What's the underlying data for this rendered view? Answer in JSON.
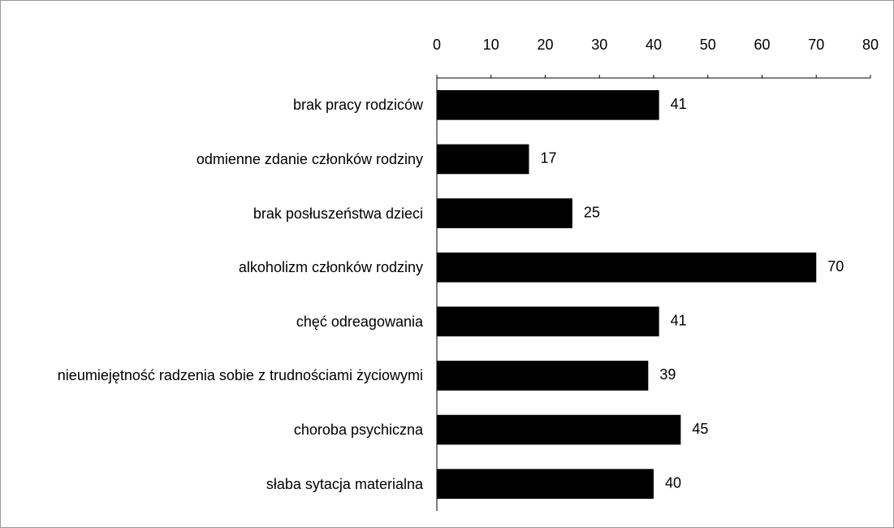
{
  "chart_data": {
    "type": "bar",
    "orientation": "horizontal",
    "categories": [
      "brak pracy rodziców",
      "odmienne zdanie członków rodziny",
      "brak posłuszeństwa dzieci",
      "alkoholizm członków rodziny",
      "chęć odreagowania",
      "nieumiejętność radzenia sobie z trudnościami życiowymi",
      "choroba psychiczna",
      "słaba sytacja materialna"
    ],
    "values": [
      41,
      17,
      25,
      70,
      41,
      39,
      45,
      40
    ],
    "color": "#000000",
    "xlim": [
      0,
      80
    ],
    "xticks": [
      0,
      10,
      20,
      30,
      40,
      50,
      60,
      70,
      80
    ],
    "grid": false
  }
}
